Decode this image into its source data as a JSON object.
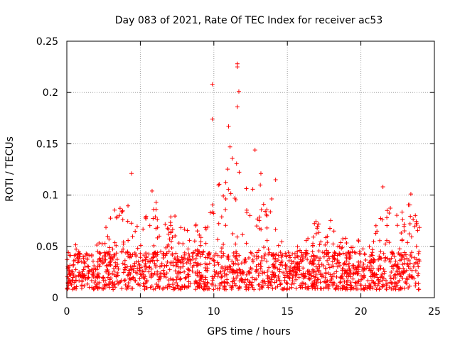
{
  "chart_data": {
    "type": "scatter",
    "title": "Day 083 of 2021, Rate Of TEC Index for receiver ac53",
    "xlabel": "GPS time / hours",
    "ylabel": "ROTI / TECUs",
    "xlim": [
      0,
      25
    ],
    "ylim": [
      0,
      0.25
    ],
    "xticks": [
      0,
      5,
      10,
      15,
      20,
      25
    ],
    "xtick_labels": [
      "0",
      "5",
      "10",
      "15",
      "20",
      "25"
    ],
    "yticks": [
      0,
      0.05,
      0.1,
      0.15,
      0.2,
      0.25
    ],
    "ytick_labels": [
      "0",
      "0.05",
      "0.1",
      "0.15",
      "0.2",
      "0.25"
    ],
    "grid": true,
    "marker": "+",
    "color": "#ff0000",
    "series": [
      {
        "name": "ROTI",
        "x_range": [
          0,
          24
        ],
        "typical_range": [
          0.008,
          0.045
        ],
        "notable_points": [
          {
            "x": 4.4,
            "y": 0.121
          },
          {
            "x": 9.9,
            "y": 0.208
          },
          {
            "x": 9.9,
            "y": 0.174
          },
          {
            "x": 11.0,
            "y": 0.167
          },
          {
            "x": 11.6,
            "y": 0.228
          },
          {
            "x": 11.6,
            "y": 0.225
          },
          {
            "x": 11.7,
            "y": 0.201
          },
          {
            "x": 11.6,
            "y": 0.186
          },
          {
            "x": 11.1,
            "y": 0.147
          },
          {
            "x": 12.8,
            "y": 0.144
          },
          {
            "x": 13.2,
            "y": 0.121
          },
          {
            "x": 14.2,
            "y": 0.115
          },
          {
            "x": 21.5,
            "y": 0.108
          },
          {
            "x": 23.4,
            "y": 0.101
          },
          {
            "x": 5.8,
            "y": 0.104
          }
        ],
        "envelope": [
          [
            0.0,
            0.035
          ],
          [
            0.5,
            0.062
          ],
          [
            1.0,
            0.038
          ],
          [
            1.5,
            0.045
          ],
          [
            2.0,
            0.05
          ],
          [
            2.5,
            0.07
          ],
          [
            3.0,
            0.08
          ],
          [
            3.5,
            0.092
          ],
          [
            4.0,
            0.099
          ],
          [
            4.5,
            0.095
          ],
          [
            5.0,
            0.075
          ],
          [
            5.5,
            0.09
          ],
          [
            6.0,
            0.097
          ],
          [
            6.5,
            0.07
          ],
          [
            7.0,
            0.08
          ],
          [
            7.5,
            0.088
          ],
          [
            8.0,
            0.078
          ],
          [
            8.5,
            0.07
          ],
          [
            9.0,
            0.072
          ],
          [
            9.5,
            0.08
          ],
          [
            10.0,
            0.125
          ],
          [
            10.5,
            0.11
          ],
          [
            11.0,
            0.145
          ],
          [
            11.5,
            0.135
          ],
          [
            12.0,
            0.13
          ],
          [
            12.5,
            0.118
          ],
          [
            13.0,
            0.12
          ],
          [
            13.5,
            0.09
          ],
          [
            14.0,
            0.1
          ],
          [
            14.5,
            0.06
          ],
          [
            15.0,
            0.05
          ],
          [
            15.5,
            0.055
          ],
          [
            16.0,
            0.052
          ],
          [
            16.5,
            0.065
          ],
          [
            17.0,
            0.078
          ],
          [
            17.5,
            0.055
          ],
          [
            18.0,
            0.085
          ],
          [
            18.5,
            0.055
          ],
          [
            19.0,
            0.06
          ],
          [
            19.5,
            0.068
          ],
          [
            20.0,
            0.05
          ],
          [
            20.5,
            0.05
          ],
          [
            21.0,
            0.07
          ],
          [
            21.5,
            0.1
          ],
          [
            22.0,
            0.09
          ],
          [
            22.5,
            0.085
          ],
          [
            23.0,
            0.09
          ],
          [
            23.5,
            0.095
          ],
          [
            24.0,
            0.08
          ]
        ]
      }
    ]
  }
}
